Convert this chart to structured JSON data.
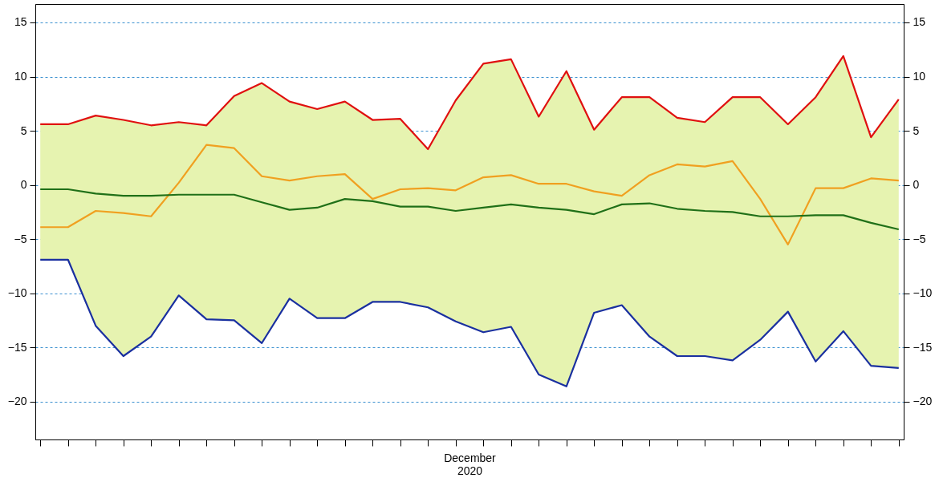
{
  "chart_data": {
    "type": "line",
    "xlabel": "December\n2020",
    "categories": [
      null,
      null,
      null,
      null,
      null,
      null,
      null,
      null,
      null,
      null,
      null,
      null,
      null,
      null,
      null,
      null,
      null,
      null,
      null,
      null,
      null,
      null,
      null,
      null,
      null,
      null,
      null,
      null,
      null,
      null,
      null,
      null
    ],
    "series": [
      {
        "color": "#e01010",
        "values": [
          5.6,
          5.6,
          6.4,
          6.0,
          5.5,
          5.8,
          5.5,
          8.2,
          9.4,
          7.7,
          7.0,
          7.7,
          6.0,
          6.1,
          3.3,
          7.8,
          11.2,
          11.6,
          6.3,
          10.5,
          5.1,
          8.1,
          8.1,
          6.2,
          5.8,
          8.1,
          8.1,
          5.6,
          8.1,
          11.9,
          4.4,
          7.9
        ]
      },
      {
        "color": "#f0a020",
        "values": [
          -3.9,
          -3.9,
          -2.4,
          -2.6,
          -2.9,
          0.2,
          3.7,
          3.4,
          0.8,
          0.4,
          0.8,
          1.0,
          -1.3,
          -0.4,
          -0.3,
          -0.5,
          0.7,
          0.9,
          0.1,
          0.1,
          -0.6,
          -1.0,
          0.9,
          1.9,
          1.7,
          2.2,
          -1.3,
          -5.5,
          -0.3,
          -0.3,
          0.6,
          0.4
        ]
      },
      {
        "color": "#207018",
        "values": [
          -0.4,
          -0.4,
          -0.8,
          -1.0,
          -1.0,
          -0.9,
          -0.9,
          -0.9,
          -1.6,
          -2.3,
          -2.1,
          -1.3,
          -1.5,
          -2.0,
          -2.0,
          -2.4,
          -2.1,
          -1.8,
          -2.1,
          -2.3,
          -2.7,
          -1.8,
          -1.7,
          -2.2,
          -2.4,
          -2.5,
          -2.9,
          -2.9,
          -2.8,
          -2.8,
          -3.5,
          -4.1
        ],
        "lower": [
          -6.9,
          -6.9,
          -13.0,
          -15.8,
          -14.0,
          -10.2,
          -12.4,
          -12.5,
          -14.6,
          -10.5,
          -12.3,
          -12.3,
          -10.8,
          -10.8,
          -11.3,
          -12.6,
          -13.6,
          -13.1,
          -17.5,
          -18.6,
          -11.8,
          -11.1,
          -14.0,
          -15.8,
          -15.8,
          -16.2,
          -14.3,
          -11.7,
          -16.3,
          -13.5,
          -16.7,
          -16.9
        ],
        "upper": [
          5.6,
          5.6,
          6.4,
          6.0,
          5.5,
          5.8,
          5.5,
          8.2,
          9.4,
          7.7,
          7.0,
          7.7,
          6.0,
          6.1,
          3.3,
          7.8,
          11.2,
          11.6,
          6.3,
          10.5,
          5.1,
          8.1,
          8.1,
          6.2,
          5.8,
          8.1,
          8.1,
          5.6,
          8.1,
          11.9,
          4.4,
          7.9
        ]
      },
      {
        "color": "#1a30a0",
        "values": [
          -6.9,
          -6.9,
          -13.0,
          -15.8,
          -14.0,
          -10.2,
          -12.4,
          -12.5,
          -14.6,
          -10.5,
          -12.3,
          -12.3,
          -10.8,
          -10.8,
          -11.3,
          -12.6,
          -13.6,
          -13.1,
          -17.5,
          -18.6,
          -11.8,
          -11.1,
          -14.0,
          -15.8,
          -15.8,
          -16.2,
          -14.3,
          -11.7,
          -16.3,
          -13.5,
          -16.7,
          -16.9
        ]
      }
    ],
    "ylim": [
      -23.5,
      16.7
    ],
    "yticks": [
      -20,
      -15,
      -10,
      -5,
      0,
      5,
      10,
      15
    ],
    "y2lim": [
      -23.5,
      16.7
    ],
    "y2ticks": [
      -20,
      -15,
      -10,
      -5,
      0,
      5,
      10,
      15
    ],
    "grid": "y",
    "marker": "none",
    "line_style": "solid"
  }
}
